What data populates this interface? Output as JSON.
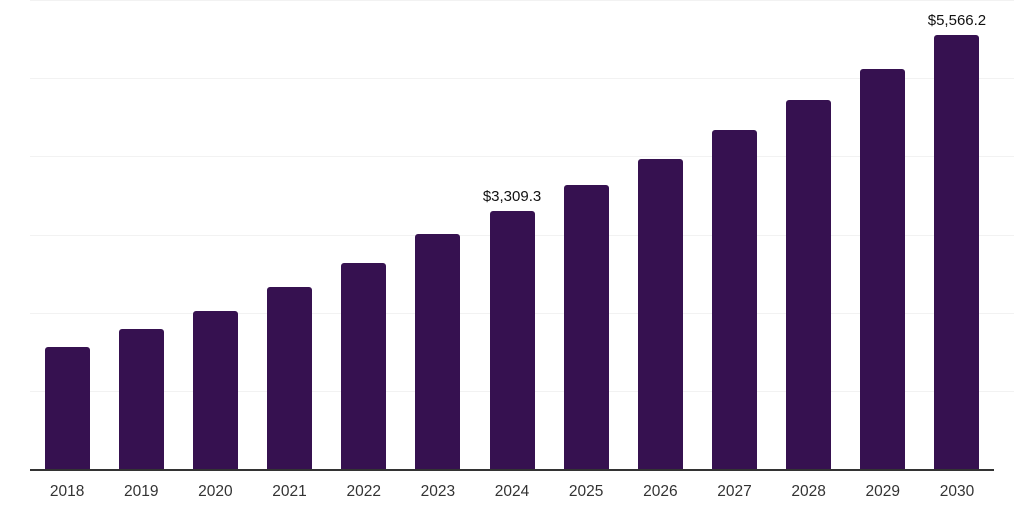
{
  "chart_data": {
    "type": "bar",
    "title": "",
    "xlabel": "",
    "ylabel": "",
    "categories": [
      "2018",
      "2019",
      "2020",
      "2021",
      "2022",
      "2023",
      "2024",
      "2025",
      "2026",
      "2027",
      "2028",
      "2029",
      "2030"
    ],
    "values": [
      1570,
      1800,
      2035,
      2345,
      2645,
      3020,
      3309.3,
      3645,
      3980,
      4350,
      4735,
      5130,
      5566.2
    ],
    "data_labels": [
      "",
      "",
      "",
      "",
      "",
      "",
      "$3,309.3",
      "",
      "",
      "",
      "",
      "",
      "$5,566.2"
    ],
    "ylim": [
      0,
      6000
    ],
    "ytick_step": 1000,
    "grid": "horizontal",
    "legend": "none",
    "y_axis_labels_visible": false,
    "bar_color": "#361150",
    "axis_color": "#333333",
    "gridline_color": "#f2f2f2",
    "data_label_color": "#111111",
    "tick_label_color": "#333333",
    "background_color": "#ffffff"
  }
}
